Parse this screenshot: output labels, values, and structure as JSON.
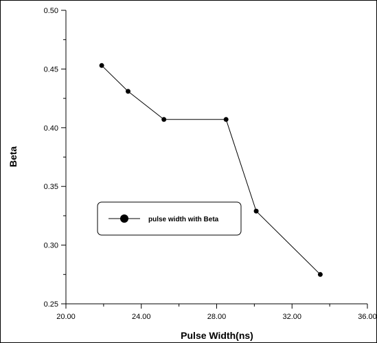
{
  "chart_data": {
    "type": "line",
    "title": "",
    "xlabel": "Pulse Width(ns)",
    "ylabel": "Beta",
    "xlim": [
      20,
      36
    ],
    "ylim": [
      0.25,
      0.5
    ],
    "x_ticks": [
      "20.00",
      "24.00",
      "28.00",
      "32.00",
      "36.00"
    ],
    "y_ticks": [
      "0.25",
      "0.30",
      "0.35",
      "0.40",
      "0.45",
      "0.50"
    ],
    "grid": false,
    "legend_position": "center-left",
    "series": [
      {
        "name": "pulse width with Beta",
        "marker": "circle",
        "color": "#000000",
        "x": [
          21.9,
          23.3,
          25.2,
          28.5,
          30.1,
          33.5
        ],
        "y": [
          0.453,
          0.431,
          0.407,
          0.407,
          0.329,
          0.275
        ]
      }
    ]
  }
}
